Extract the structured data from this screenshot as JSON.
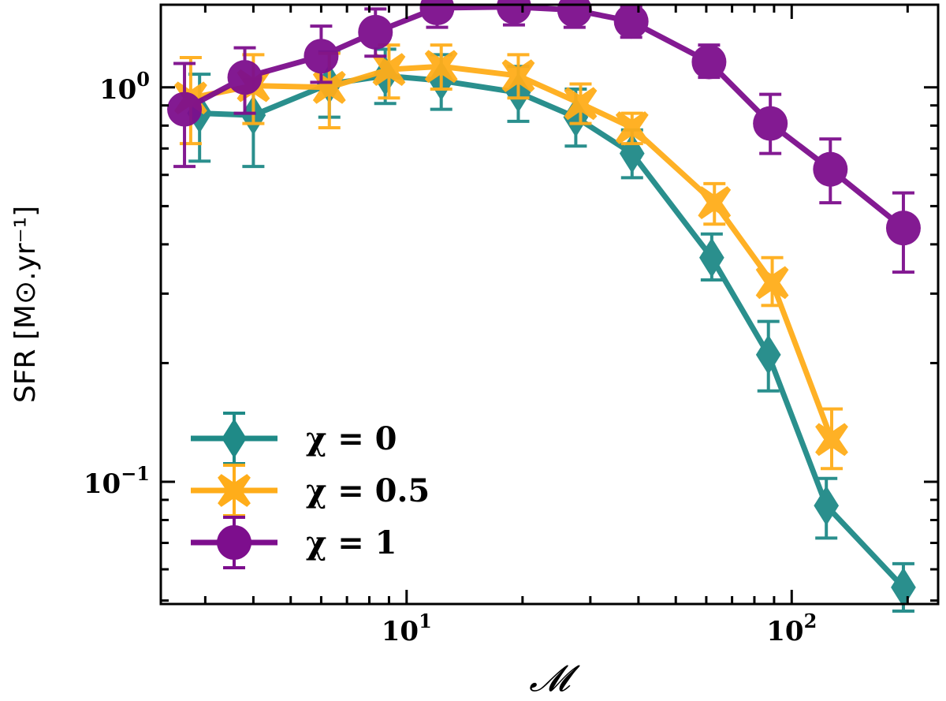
{
  "chart_data": {
    "type": "line",
    "x_scale": "log",
    "y_scale": "log",
    "xlim": [
      2.3,
      240
    ],
    "ylim": [
      0.049,
      1.62
    ],
    "xlabel": "𝓜",
    "ylabel": "SFR [M⊙.yr⁻¹]",
    "x_ticks": [
      {
        "value": 10,
        "base": "10",
        "exp": "1"
      },
      {
        "value": 100,
        "base": "10",
        "exp": "2"
      }
    ],
    "y_ticks": [
      {
        "value": 0.1,
        "base": "10",
        "exp": "−1"
      },
      {
        "value": 1,
        "base": "10",
        "exp": "0"
      }
    ],
    "grid": false,
    "legend_position": "lower-left",
    "series": [
      {
        "name": "χ = 0",
        "color": "#1f8a87",
        "marker": "diamond",
        "x": [
          2.9,
          4.0,
          6.3,
          8.8,
          12.3,
          19.5,
          27.5,
          38.5,
          62,
          87,
          123,
          195
        ],
        "y": [
          0.86,
          0.85,
          1.02,
          1.07,
          1.04,
          0.97,
          0.84,
          0.68,
          0.37,
          0.21,
          0.087,
          0.054
        ],
        "err_lo": [
          0.21,
          0.22,
          0.18,
          0.16,
          0.16,
          0.15,
          0.13,
          0.09,
          0.045,
          0.04,
          0.015,
          0.007
        ],
        "err_hi": [
          0.22,
          0.2,
          0.21,
          0.18,
          0.17,
          0.16,
          0.15,
          0.1,
          0.055,
          0.045,
          0.015,
          0.008
        ]
      },
      {
        "name": "χ = 0.5",
        "color": "#ffad1a",
        "marker": "X",
        "x": [
          2.75,
          4.0,
          6.3,
          9.0,
          12.3,
          19.5,
          28.3,
          38.5,
          63,
          89,
          127
        ],
        "y": [
          0.94,
          1.01,
          1.0,
          1.11,
          1.13,
          1.07,
          0.91,
          0.79,
          0.51,
          0.32,
          0.128
        ],
        "err_lo": [
          0.22,
          0.2,
          0.21,
          0.17,
          0.14,
          0.13,
          0.1,
          0.07,
          0.06,
          0.04,
          0.02
        ],
        "err_hi": [
          0.25,
          0.2,
          0.22,
          0.17,
          0.15,
          0.14,
          0.11,
          0.07,
          0.06,
          0.05,
          0.025
        ]
      },
      {
        "name": "χ = 1",
        "color": "#7d0e8d",
        "marker": "circle",
        "x": [
          2.65,
          3.8,
          6.0,
          8.3,
          12.0,
          19.0,
          27.3,
          38.3,
          61,
          88,
          126,
          195
        ],
        "y": [
          0.88,
          1.06,
          1.2,
          1.38,
          1.59,
          1.6,
          1.57,
          1.47,
          1.16,
          0.81,
          0.62,
          0.44
        ],
        "err_lo": [
          0.25,
          0.2,
          0.17,
          0.18,
          0.17,
          0.16,
          0.15,
          0.13,
          0.1,
          0.13,
          0.11,
          0.1
        ],
        "err_hi": [
          0.27,
          0.2,
          0.23,
          0.2,
          0.18,
          0.17,
          0.16,
          0.13,
          0.12,
          0.15,
          0.12,
          0.1
        ]
      }
    ]
  }
}
